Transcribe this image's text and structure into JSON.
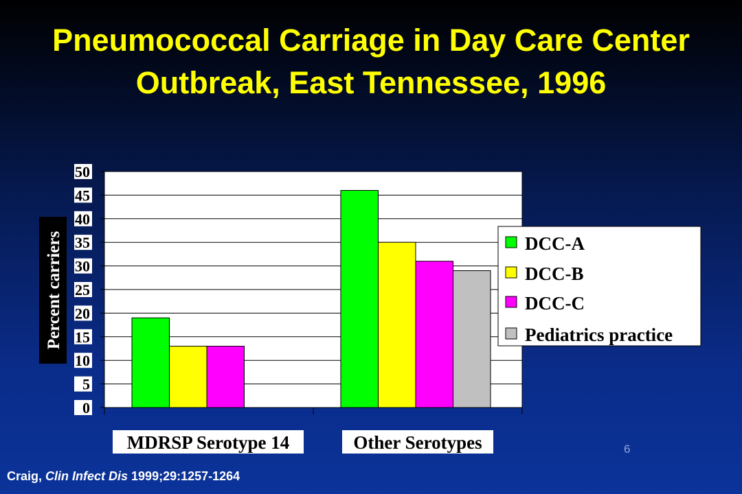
{
  "slide": {
    "number": "6",
    "citation": {
      "author": "Craig, ",
      "journal": "Clin Infect Dis",
      "details": " 1999;29:1257-1264"
    }
  },
  "chart_data": {
    "type": "bar",
    "title": "Pneumococcal Carriage in Day Care Center Outbreak, East Tennessee, 1996",
    "ylabel": "Percent carriers",
    "xlabel": "",
    "ylim": [
      0,
      50
    ],
    "yticks": [
      "0",
      "5",
      "10",
      "15",
      "20",
      "25",
      "30",
      "35",
      "40",
      "45",
      "50"
    ],
    "grid": true,
    "legend_position": "right",
    "categories": [
      "MDRSP Serotype 14",
      "Other Serotypes"
    ],
    "series": [
      {
        "name": "DCC-A",
        "color": "#00ff00",
        "values": [
          19,
          46
        ]
      },
      {
        "name": "DCC-B",
        "color": "#ffff00",
        "values": [
          13,
          35
        ]
      },
      {
        "name": "DCC-C",
        "color": "#ff00ff",
        "values": [
          13,
          31
        ]
      },
      {
        "name": "Pediatrics practice",
        "color": "#c0c0c0",
        "values": [
          null,
          29
        ]
      }
    ]
  }
}
